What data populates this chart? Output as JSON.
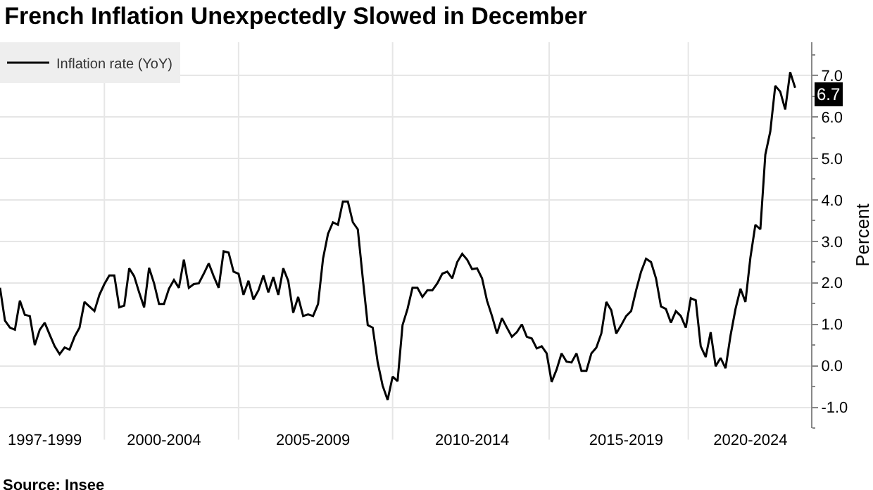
{
  "chart_data": {
    "type": "line",
    "title": "French Inflation Unexpectedly Slowed in December",
    "ylabel": "Percent",
    "annotations": [
      "Source: Insee"
    ],
    "legend": "top left",
    "grid": true,
    "categories": [
      null,
      null,
      null,
      null,
      null,
      null,
      null,
      null,
      null,
      "1997-1999",
      null,
      null,
      null,
      null,
      null,
      null,
      null,
      null,
      null,
      null,
      null,
      null,
      null,
      null,
      null,
      null,
      null,
      null,
      null,
      null,
      null,
      null,
      null,
      "2000-2004",
      null,
      null,
      null,
      null,
      null,
      null,
      null,
      null,
      null,
      null,
      null,
      null,
      null,
      null,
      null,
      null,
      null,
      null,
      null,
      null,
      null,
      null,
      null,
      null,
      null,
      null,
      null,
      null,
      null,
      "2005-2009",
      null,
      null,
      null,
      null,
      null,
      null,
      null,
      null,
      null,
      null,
      null,
      null,
      null,
      null,
      null,
      null,
      null,
      null,
      null,
      null,
      null,
      null,
      null,
      null,
      null,
      null,
      null,
      null,
      null,
      null,
      null,
      "2010-2014",
      null,
      null,
      null,
      null,
      null,
      null,
      null,
      null,
      null,
      null,
      null,
      null,
      null,
      null,
      null,
      null,
      null,
      null,
      null,
      null,
      null,
      null,
      null,
      null,
      null,
      null,
      null,
      null,
      null,
      null,
      "2015-2019",
      null,
      null,
      null,
      null,
      null,
      null,
      null,
      null,
      null,
      null,
      null,
      null,
      null,
      null,
      null,
      null,
      null,
      null,
      null,
      null,
      null,
      null,
      null,
      null,
      "2020-2024",
      null,
      null,
      null,
      null,
      null,
      null,
      null,
      null,
      null
    ],
    "ylim": [
      -1.5,
      7.8
    ],
    "yticks": [
      {
        "value": -1,
        "label": "-1.0"
      },
      {
        "value": 0,
        "label": "0.0"
      },
      {
        "value": 1,
        "label": "1.0"
      },
      {
        "value": 2,
        "label": "2.0"
      },
      {
        "value": 3,
        "label": "3.0"
      },
      {
        "value": 4,
        "label": "4.0"
      },
      {
        "value": 5,
        "label": "5.0"
      },
      {
        "value": 6,
        "label": "6.0"
      },
      {
        "value": 7,
        "label": "7.0"
      }
    ],
    "series": [
      {
        "name": "Inflation rate (YoY)",
        "color": "#000000",
        "values": [
          1.88,
          1.09,
          0.92,
          0.87,
          1.57,
          1.23,
          1.2,
          0.5,
          0.87,
          1.04,
          0.75,
          0.47,
          0.28,
          0.44,
          0.39,
          0.7,
          0.92,
          1.54,
          1.43,
          1.32,
          1.71,
          1.97,
          2.18,
          2.18,
          1.41,
          1.45,
          2.35,
          2.16,
          1.77,
          1.41,
          2.36,
          1.99,
          1.49,
          1.49,
          1.86,
          2.07,
          1.88,
          2.56,
          1.88,
          1.97,
          1.99,
          2.22,
          2.47,
          2.16,
          1.88,
          2.76,
          2.73,
          2.27,
          2.22,
          1.71,
          2.05,
          1.6,
          1.82,
          2.18,
          1.77,
          2.14,
          1.71,
          2.35,
          2.05,
          1.28,
          1.66,
          1.2,
          1.24,
          1.2,
          1.49,
          2.58,
          3.18,
          3.46,
          3.4,
          3.96,
          3.96,
          3.46,
          3.29,
          2.11,
          0.98,
          0.92,
          0.08,
          -0.48,
          -0.82,
          -0.26,
          -0.37,
          0.98,
          1.37,
          1.88,
          1.88,
          1.66,
          1.82,
          1.82,
          1.99,
          2.22,
          2.27,
          2.11,
          2.5,
          2.7,
          2.56,
          2.33,
          2.35,
          2.11,
          1.57,
          1.2,
          0.78,
          1.15,
          0.92,
          0.7,
          0.81,
          1.0,
          0.7,
          0.66,
          0.42,
          0.47,
          0.3,
          -0.39,
          -0.09,
          0.3,
          0.1,
          0.08,
          0.3,
          -0.12,
          -0.12,
          0.3,
          0.44,
          0.78,
          1.54,
          1.34,
          0.78,
          0.98,
          1.2,
          1.32,
          1.82,
          2.27,
          2.58,
          2.5,
          2.11,
          1.43,
          1.37,
          1.04,
          1.32,
          1.2,
          0.92,
          1.63,
          1.58,
          0.47,
          0.21,
          0.81,
          -0.01,
          0.19,
          -0.06,
          0.73,
          1.37,
          1.86,
          1.54,
          2.61,
          3.4,
          3.29,
          5.09,
          5.65,
          6.75,
          6.61,
          6.18,
          7.08,
          6.7
        ],
        "value_labels": [
          null,
          null,
          null,
          null,
          null,
          null,
          null,
          null,
          null,
          null,
          null,
          null,
          null,
          null,
          null,
          null,
          null,
          null,
          null,
          null,
          null,
          null,
          null,
          null,
          null,
          null,
          null,
          null,
          null,
          null,
          null,
          null,
          null,
          null,
          null,
          null,
          null,
          null,
          null,
          null,
          null,
          null,
          null,
          null,
          null,
          null,
          null,
          null,
          null,
          null,
          null,
          null,
          null,
          null,
          null,
          null,
          null,
          null,
          null,
          null,
          null,
          null,
          null,
          null,
          null,
          null,
          null,
          null,
          null,
          null,
          null,
          null,
          null,
          null,
          null,
          null,
          null,
          null,
          null,
          null,
          null,
          null,
          null,
          null,
          null,
          null,
          null,
          null,
          null,
          null,
          null,
          null,
          null,
          null,
          null,
          null,
          null,
          null,
          null,
          null,
          null,
          null,
          null,
          null,
          null,
          null,
          null,
          null,
          null,
          null,
          null,
          null,
          null,
          null,
          null,
          null,
          null,
          null,
          null,
          null,
          null,
          null,
          null,
          null,
          null,
          null,
          null,
          null,
          null,
          null,
          null,
          null,
          null,
          null,
          null,
          null,
          null,
          null,
          null,
          null,
          null,
          null,
          null,
          null,
          null,
          null,
          null,
          null,
          null,
          null,
          null,
          null,
          null,
          null,
          null,
          null,
          null,
          null,
          null,
          null,
          "6.7"
        ]
      }
    ]
  }
}
